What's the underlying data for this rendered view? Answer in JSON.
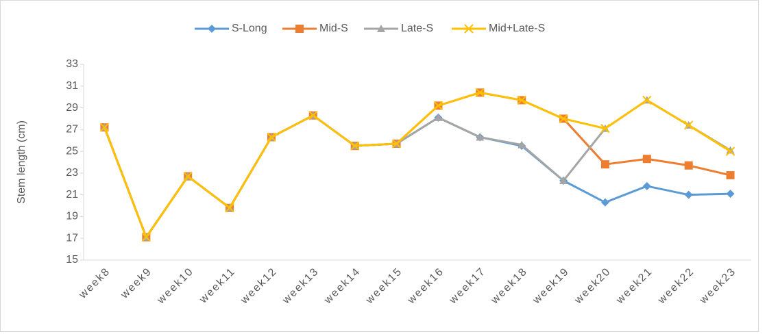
{
  "chart_data": {
    "type": "line",
    "y_label": "Stem length (cm)",
    "categories": [
      "week8",
      "week9",
      "week10",
      "week11",
      "week12",
      "week13",
      "week14",
      "week15",
      "week16",
      "week17",
      "week18",
      "week19",
      "week20",
      "week21",
      "week22",
      "week23"
    ],
    "series": [
      {
        "name": "S-Long",
        "color": "#5b9bd5",
        "marker": "diamond",
        "values": [
          27.2,
          17.1,
          22.7,
          19.8,
          26.3,
          28.3,
          25.5,
          25.7,
          28.1,
          26.3,
          25.5,
          22.3,
          20.3,
          21.8,
          21.0,
          21.1
        ]
      },
      {
        "name": "Mid-S",
        "color": "#ed7d31",
        "marker": "square",
        "values": [
          27.2,
          17.1,
          22.7,
          19.8,
          26.3,
          28.3,
          25.5,
          25.7,
          29.2,
          30.4,
          29.7,
          28.0,
          23.8,
          24.3,
          23.7,
          22.8
        ]
      },
      {
        "name": "Late-S",
        "color": "#a5a5a5",
        "marker": "triangle",
        "values": [
          27.2,
          17.1,
          22.7,
          19.8,
          26.3,
          28.3,
          25.5,
          25.7,
          28.1,
          26.3,
          25.6,
          22.3,
          27.1,
          29.7,
          27.4,
          25.1
        ]
      },
      {
        "name": "Mid+Late-S",
        "color": "#ffc000",
        "marker": "x",
        "values": [
          27.2,
          17.1,
          22.7,
          19.8,
          26.3,
          28.3,
          25.5,
          25.7,
          29.2,
          30.4,
          29.7,
          28.0,
          27.1,
          29.7,
          27.4,
          25.0
        ]
      }
    ],
    "ylim": [
      15,
      33
    ],
    "yticks": [
      15,
      17,
      19,
      21,
      23,
      25,
      27,
      29,
      31,
      33
    ],
    "grid": false,
    "legend": "top"
  }
}
